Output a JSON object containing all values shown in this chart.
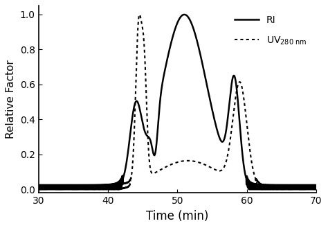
{
  "title": "",
  "xlabel": "Time (min)",
  "ylabel": "Relative Factor",
  "xlim": [
    30,
    70
  ],
  "ylim": [
    -0.02,
    1.05
  ],
  "xticks": [
    30,
    40,
    50,
    60,
    70
  ],
  "yticks": [
    0.0,
    0.2,
    0.4,
    0.6,
    0.8,
    1.0
  ],
  "line_color": "#000000",
  "background_color": "#ffffff",
  "ri_label": "RI",
  "uv_label": "UV$_{280\\ \\mathregular{nm}}$"
}
